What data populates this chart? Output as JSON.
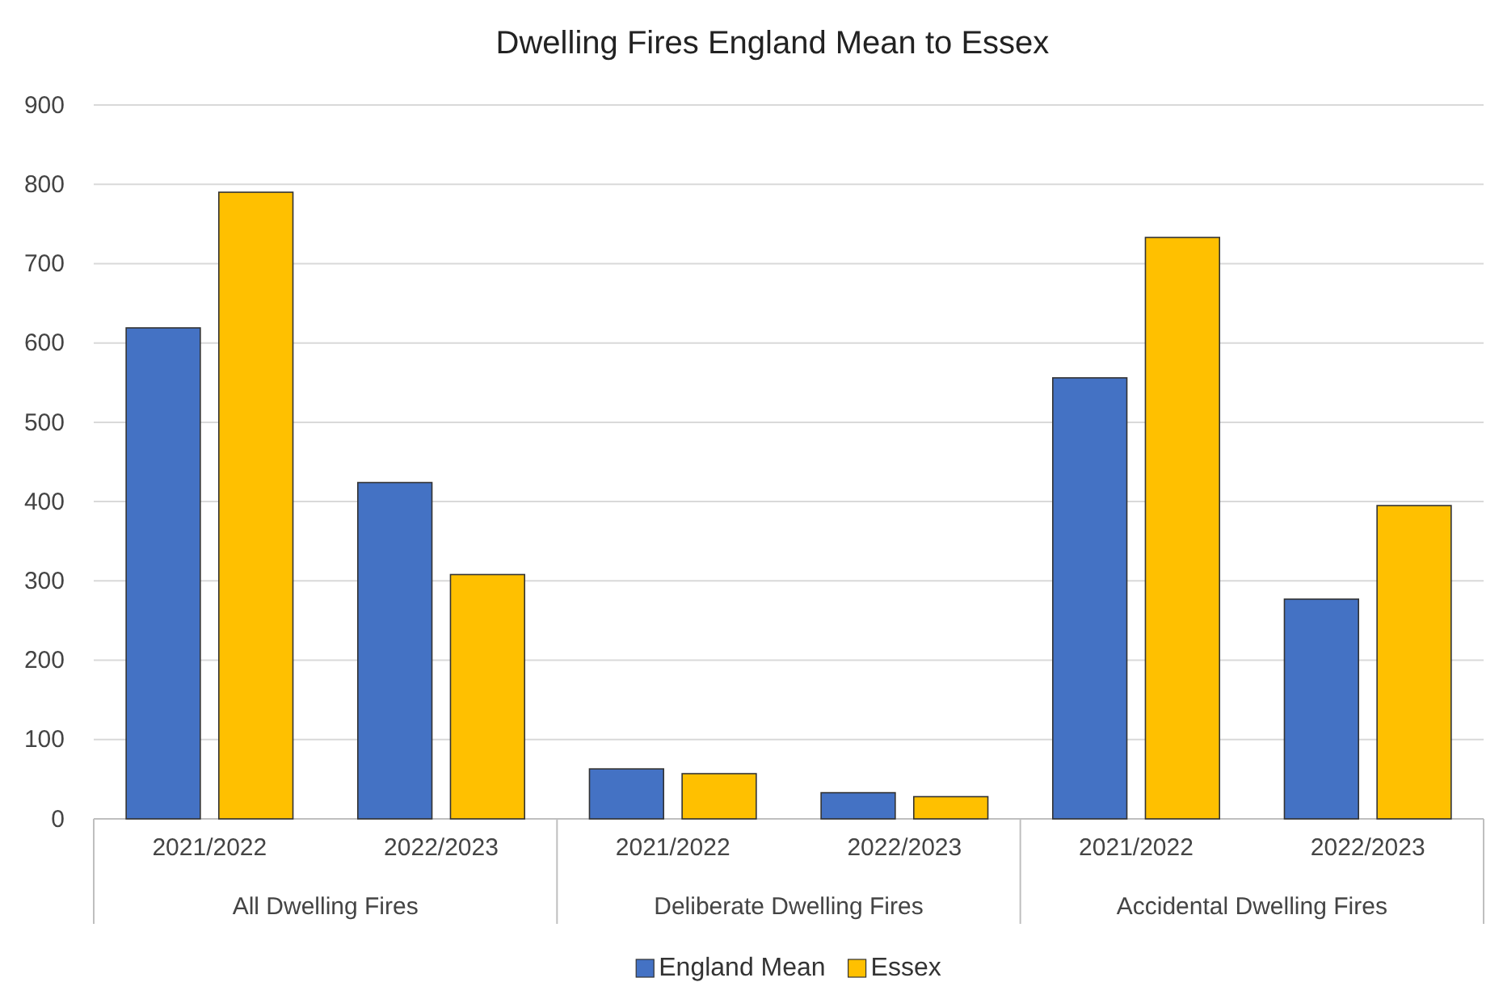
{
  "chart_data": {
    "type": "bar",
    "title": "Dwelling Fires England Mean to Essex",
    "categories": [
      "2021/2022",
      "2022/2023",
      "2021/2022",
      "2022/2023",
      "2021/2022",
      "2022/2023"
    ],
    "series": [
      {
        "name": "England Mean",
        "color": "#4472c4",
        "values": [
          619,
          424,
          63,
          33,
          556,
          277
        ]
      },
      {
        "name": "Essex",
        "color": "#ffc000",
        "values": [
          790,
          308,
          57,
          28,
          733,
          395
        ]
      }
    ],
    "annotations": [
      "All Dwelling Fires",
      "Deliberate Dwelling Fires",
      "Accidental Dwelling Fires"
    ],
    "ylim": [
      0,
      900
    ],
    "yticks": [
      0,
      100,
      200,
      300,
      400,
      500,
      600,
      700,
      800,
      900
    ],
    "grid": "y",
    "legend": "bottom"
  }
}
